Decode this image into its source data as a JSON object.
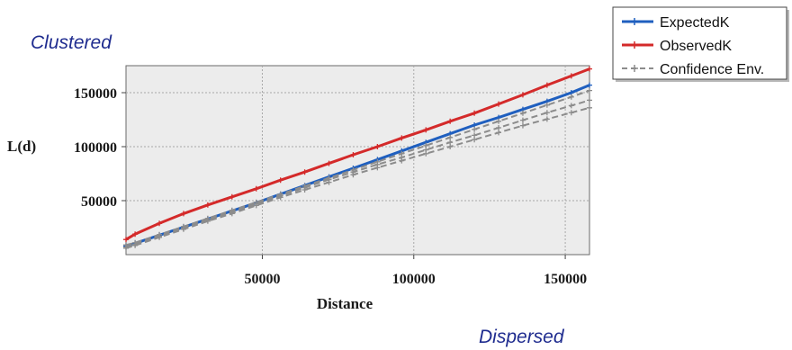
{
  "annotations": {
    "top_left": "Clustered",
    "bottom_right": "Dispersed"
  },
  "chart_data": {
    "type": "line",
    "title": "",
    "xlabel": "Distance",
    "ylabel": "L(d)",
    "xlim": [
      5000,
      158000
    ],
    "ylim": [
      0,
      175000
    ],
    "x_ticks": [
      50000,
      100000,
      150000
    ],
    "y_ticks": [
      50000,
      100000,
      150000
    ],
    "x_tick_labels": [
      "50000",
      "100000",
      "150000"
    ],
    "y_tick_labels": [
      "50000",
      "100000",
      "150000"
    ],
    "grid": true,
    "legend_position": "top-right",
    "legend": [
      "ExpectedK",
      "ObservedK",
      "Confidence Env."
    ],
    "x": [
      5000,
      8000,
      16000,
      24000,
      32000,
      40000,
      48000,
      56000,
      64000,
      72000,
      80000,
      88000,
      96000,
      104000,
      112000,
      120000,
      128000,
      136000,
      144000,
      152000,
      158000
    ],
    "series": [
      {
        "name": "ExpectedK",
        "color": "#1f5fbf",
        "style": "solid",
        "values": [
          8000,
          10500,
          18000,
          25500,
          33000,
          40500,
          48000,
          56000,
          64000,
          72000,
          80000,
          88000,
          96000,
          104000,
          112000,
          120000,
          127000,
          134500,
          142000,
          150000,
          157000
        ]
      },
      {
        "name": "ObservedK",
        "color": "#d42a2a",
        "style": "solid",
        "values": [
          14000,
          19000,
          29000,
          38000,
          46000,
          53500,
          61000,
          69000,
          76500,
          84500,
          92500,
          100000,
          108000,
          115500,
          123500,
          131000,
          139500,
          148000,
          157000,
          165500,
          172000
        ]
      },
      {
        "name": "Confidence Env.",
        "color": "#8c8c8c",
        "style": "dashed",
        "values": [
          9000,
          11000,
          18500,
          26000,
          33500,
          41000,
          48500,
          56000,
          63500,
          71000,
          78500,
          86000,
          93500,
          101000,
          108500,
          116000,
          123500,
          131000,
          138500,
          146000,
          152000
        ]
      },
      {
        "name": "",
        "color": "#8c8c8c",
        "style": "dashed",
        "values": [
          7000,
          9500,
          17000,
          24500,
          32000,
          39500,
          47000,
          54500,
          62000,
          69500,
          76500,
          83500,
          90000,
          97000,
          104000,
          110500,
          117500,
          124500,
          131500,
          138000,
          143000
        ]
      },
      {
        "name": "",
        "color": "#8c8c8c",
        "style": "dashed",
        "values": [
          6000,
          8500,
          16000,
          23500,
          31000,
          38000,
          45500,
          53000,
          60000,
          67000,
          74000,
          80500,
          87000,
          93500,
          100000,
          106500,
          113000,
          119500,
          125500,
          131500,
          136000
        ]
      }
    ]
  }
}
